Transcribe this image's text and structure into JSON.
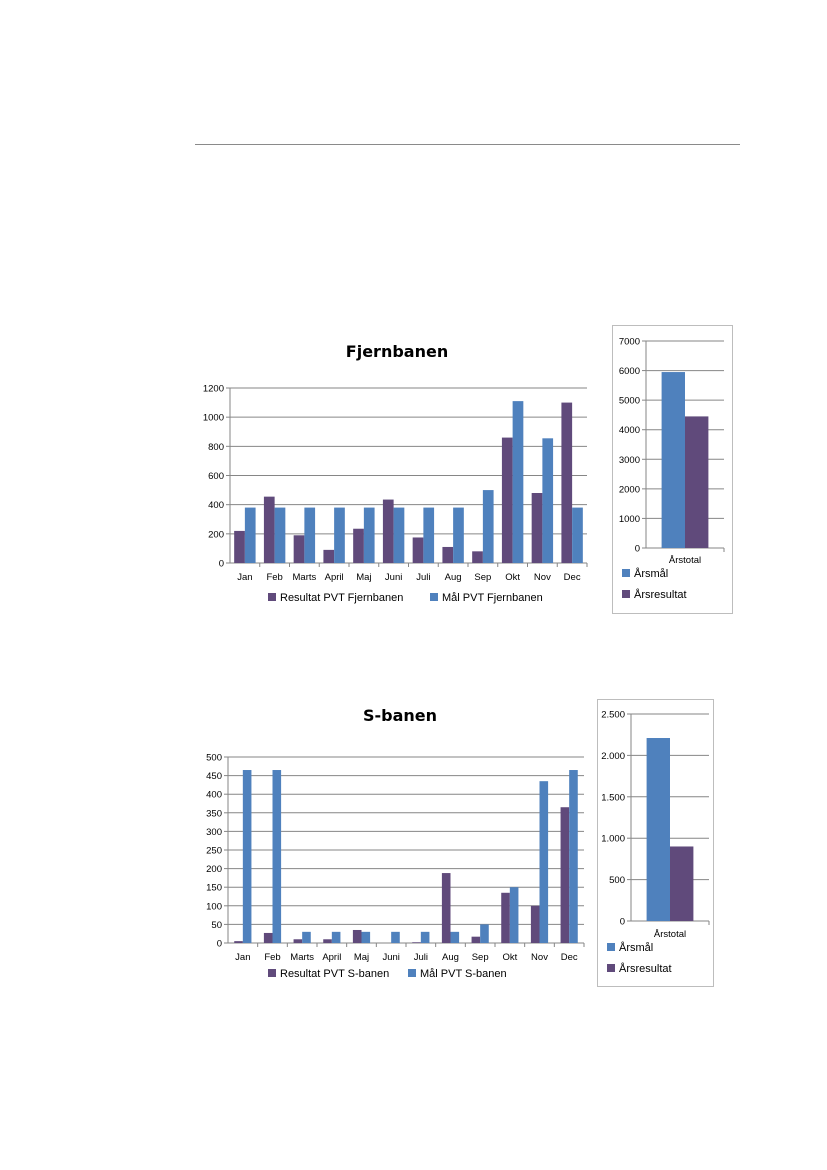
{
  "colors": {
    "result": "#604a7b",
    "target": "#4f81bd"
  },
  "chart_data": [
    {
      "type": "bar",
      "title": "Fjernbanen",
      "categories": [
        "Jan",
        "Feb",
        "Marts",
        "April",
        "Maj",
        "Juni",
        "Juli",
        "Aug",
        "Sep",
        "Okt",
        "Nov",
        "Dec"
      ],
      "series": [
        {
          "name": "Resultat PVT Fjernbanen",
          "color": "#604a7b",
          "values": [
            220,
            455,
            190,
            90,
            235,
            435,
            175,
            110,
            80,
            860,
            480,
            1100
          ]
        },
        {
          "name": "Mål PVT Fjernbanen",
          "color": "#4f81bd",
          "values": [
            380,
            380,
            380,
            380,
            380,
            380,
            380,
            380,
            500,
            1110,
            855,
            380
          ]
        }
      ],
      "ylim": [
        0,
        1200
      ],
      "yticks": [
        0,
        200,
        400,
        600,
        800,
        1000,
        1200
      ],
      "ytick_labels": [
        "0",
        "200",
        "400",
        "600",
        "800",
        "1000",
        "1200"
      ],
      "grid": true,
      "legend": "bottom"
    },
    {
      "type": "bar",
      "title": "",
      "categories": [
        "Årstotal"
      ],
      "series": [
        {
          "name": "Årsmål",
          "color": "#4f81bd",
          "values": [
            5950
          ]
        },
        {
          "name": "Årsresultat",
          "color": "#604a7b",
          "values": [
            4450
          ]
        }
      ],
      "ylim": [
        0,
        7000
      ],
      "yticks": [
        0,
        1000,
        2000,
        3000,
        4000,
        5000,
        6000,
        7000
      ],
      "ytick_labels": [
        "0",
        "1000",
        "2000",
        "3000",
        "4000",
        "5000",
        "6000",
        "7000"
      ],
      "grid": true,
      "legend": "bottom"
    },
    {
      "type": "bar",
      "title": "S-banen",
      "categories": [
        "Jan",
        "Feb",
        "Marts",
        "April",
        "Maj",
        "Juni",
        "Juli",
        "Aug",
        "Sep",
        "Okt",
        "Nov",
        "Dec"
      ],
      "series": [
        {
          "name": "Resultat PVT S-banen",
          "color": "#604a7b",
          "values": [
            5,
            27,
            10,
            10,
            35,
            0,
            2,
            188,
            17,
            135,
            100,
            365
          ]
        },
        {
          "name": "Mål PVT S-banen",
          "color": "#4f81bd",
          "values": [
            465,
            465,
            30,
            30,
            30,
            30,
            30,
            30,
            50,
            150,
            435,
            465
          ]
        }
      ],
      "ylim": [
        0,
        500
      ],
      "yticks": [
        0,
        50,
        100,
        150,
        200,
        250,
        300,
        350,
        400,
        450,
        500
      ],
      "ytick_labels": [
        "0",
        "50",
        "100",
        "150",
        "200",
        "250",
        "300",
        "350",
        "400",
        "450",
        "500"
      ],
      "grid": true,
      "legend": "bottom"
    },
    {
      "type": "bar",
      "title": "",
      "categories": [
        "Årstotal"
      ],
      "series": [
        {
          "name": "Årsmål",
          "color": "#4f81bd",
          "values": [
            2210
          ]
        },
        {
          "name": "Årsresultat",
          "color": "#604a7b",
          "values": [
            900
          ]
        }
      ],
      "ylim": [
        0,
        2500
      ],
      "yticks": [
        0,
        500,
        1000,
        1500,
        2000,
        2500
      ],
      "ytick_labels": [
        "0",
        "500",
        "1.000",
        "1.500",
        "2.000",
        "2.500"
      ],
      "grid": true,
      "legend": "bottom"
    }
  ]
}
